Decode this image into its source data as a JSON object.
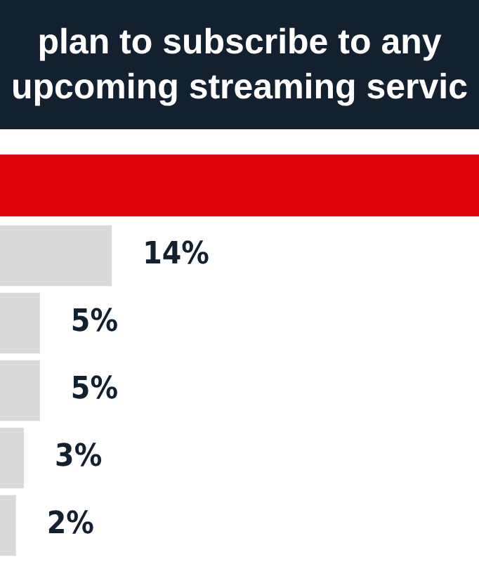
{
  "chart_data": {
    "type": "bar",
    "title": "plan to subscribe to any upcoming streaming servic",
    "orientation": "horizontal",
    "categories": [
      null,
      null,
      null,
      null,
      null
    ],
    "values": [
      14,
      5,
      5,
      3,
      2
    ],
    "value_labels": [
      "14%",
      "5%",
      "5%",
      "3%",
      "2%"
    ],
    "color": "#d9d9d9"
  }
}
